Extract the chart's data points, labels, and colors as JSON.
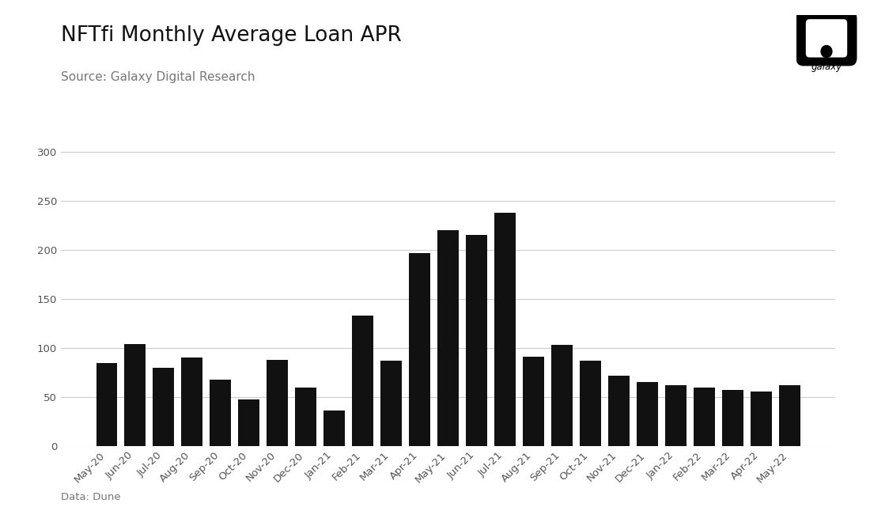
{
  "title": "NFTfi Monthly Average Loan APR",
  "subtitle": "Source: Galaxy Digital Research",
  "footnote": "Data: Dune",
  "categories": [
    "May-20",
    "Jun-20",
    "Jul-20",
    "Aug-20",
    "Sep-20",
    "Oct-20",
    "Nov-20",
    "Dec-20",
    "Jan-21",
    "Feb-21",
    "Mar-21",
    "Apr-21",
    "May-21",
    "Jun-21",
    "Jul-21",
    "Aug-21",
    "Sep-21",
    "Oct-21",
    "Nov-21",
    "Dec-21",
    "Jan-22",
    "Feb-22",
    "Mar-22",
    "Apr-22",
    "May-22"
  ],
  "values": [
    85,
    104,
    80,
    90,
    68,
    48,
    88,
    60,
    36,
    133,
    87,
    197,
    220,
    215,
    238,
    91,
    103,
    87,
    72,
    65,
    62,
    60,
    57,
    56,
    62
  ],
  "bar_color": "#111111",
  "background_color": "#ffffff",
  "title_color": "#111111",
  "subtitle_color": "#777777",
  "footnote_color": "#777777",
  "yticks": [
    0,
    50,
    100,
    150,
    200,
    250,
    300
  ],
  "ylim": [
    0,
    310
  ],
  "title_fontsize": 19,
  "subtitle_fontsize": 11,
  "tick_fontsize": 9.5,
  "footnote_fontsize": 9.5,
  "grid_color": "#cccccc"
}
